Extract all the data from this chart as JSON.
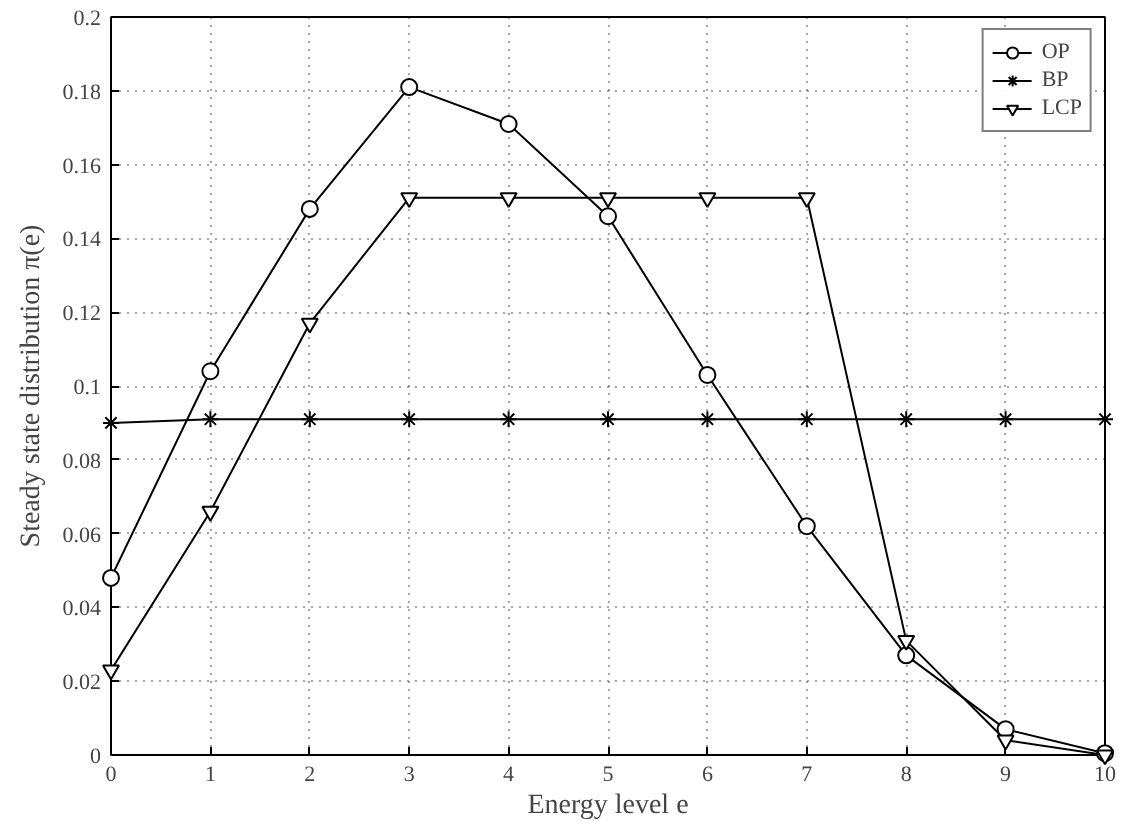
{
  "chart_data": {
    "type": "line",
    "xlabel": "Energy level e",
    "ylabel": "Steady state distribution π(e)",
    "x": [
      0,
      1,
      2,
      3,
      4,
      5,
      6,
      7,
      8,
      9,
      10
    ],
    "series": [
      {
        "name": "OP",
        "color": "#000000",
        "marker": "circle",
        "values": [
          0.048,
          0.104,
          0.148,
          0.181,
          0.171,
          0.146,
          0.103,
          0.062,
          0.027,
          0.007,
          0.0005
        ]
      },
      {
        "name": "BP",
        "color": "#000000",
        "marker": "cross",
        "values": [
          0.09,
          0.091,
          0.091,
          0.091,
          0.091,
          0.091,
          0.091,
          0.091,
          0.091,
          0.091,
          0.091
        ]
      },
      {
        "name": "LCP",
        "color": "#000000",
        "marker": "triangle",
        "values": [
          0.023,
          0.066,
          0.117,
          0.151,
          0.151,
          0.151,
          0.151,
          0.151,
          0.031,
          0.004,
          0.0
        ]
      }
    ],
    "xlim": [
      0,
      10
    ],
    "ylim": [
      0,
      0.2
    ],
    "xticks": [
      0,
      1,
      2,
      3,
      4,
      5,
      6,
      7,
      8,
      9,
      10
    ],
    "yticks": [
      0,
      0.02,
      0.04,
      0.06,
      0.08,
      0.1,
      0.12,
      0.14,
      0.16,
      0.18,
      0.2
    ],
    "grid": true,
    "legend": "top right",
    "line_style": "solid"
  }
}
